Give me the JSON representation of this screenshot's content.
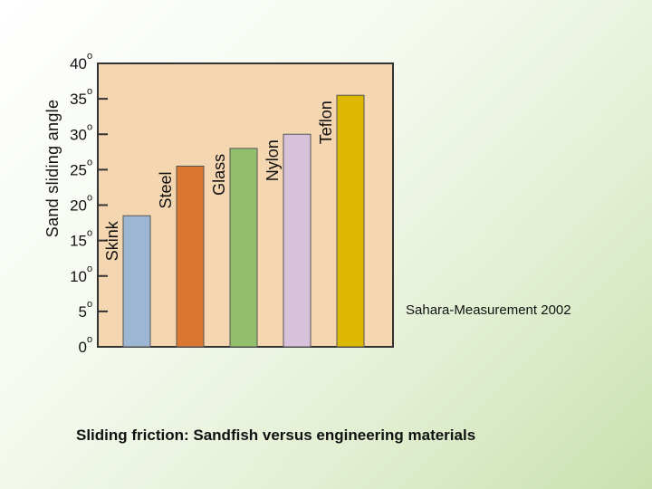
{
  "chart_data": {
    "type": "bar",
    "title": "Sliding friction:  Sandfish versus engineering materials",
    "ylabel": "Sand sliding angle",
    "xlabel": "",
    "annotation": "Sahara-Measurement 2002",
    "categories": [
      "Skink",
      "Steel",
      "Glass",
      "Nylon",
      "Teflon"
    ],
    "values": [
      18.5,
      25.5,
      28,
      30,
      35.5
    ],
    "colors": [
      "#9db6d4",
      "#dc7732",
      "#93bf6c",
      "#d8c2dc",
      "#dcb900"
    ],
    "ylim": [
      0,
      40
    ],
    "yticks": [
      {
        "value": 0,
        "label": "0"
      },
      {
        "value": 5,
        "label": "5"
      },
      {
        "value": 10,
        "label": "10"
      },
      {
        "value": 15,
        "label": "15"
      },
      {
        "value": 20,
        "label": "20"
      },
      {
        "value": 25,
        "label": "25"
      },
      {
        "value": 30,
        "label": "30"
      },
      {
        "value": 35,
        "label": "35"
      },
      {
        "value": 40,
        "label": "40"
      }
    ],
    "degree_symbol": "o",
    "plot_background": "#f4d6b0",
    "grid": false
  }
}
